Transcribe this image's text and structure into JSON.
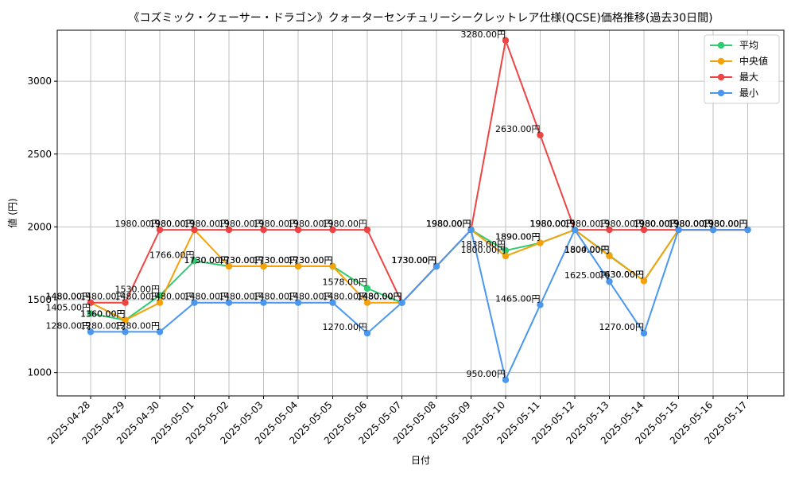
{
  "chart_data": {
    "type": "line",
    "title": "《コズミック・クェーサー・ドラゴン》クォーターセンチュリーシークレットレア仕様(QCSE)価格推移(過去30日間)",
    "xlabel": "日付",
    "ylabel": "値 (円)",
    "ylim": [
      840,
      3350
    ],
    "yticks": [
      1000,
      1500,
      2000,
      2500,
      3000
    ],
    "grid": true,
    "legend_position": "top-right",
    "label_suffix": "円",
    "x": [
      "2025-04-28",
      "2025-04-29",
      "2025-04-30",
      "2025-05-01",
      "2025-05-02",
      "2025-05-03",
      "2025-05-04",
      "2025-05-05",
      "2025-05-06",
      "2025-05-07",
      "2025-05-08",
      "2025-05-09",
      "2025-05-10",
      "2025-05-11",
      "2025-05-12",
      "2025-05-13",
      "2025-05-14",
      "2025-05-15",
      "2025-05-16",
      "2025-05-17"
    ],
    "series": [
      {
        "name": "平均",
        "color": "#2ecc71",
        "values": [
          1405,
          1360,
          1530,
          1766,
          1730,
          1730,
          1730,
          1730,
          1578,
          1480,
          1730,
          1980,
          1838,
          1890,
          1980,
          1804,
          1630,
          1980,
          1980,
          1980
        ]
      },
      {
        "name": "中央値",
        "color": "#f5a20a",
        "values": [
          1480,
          1360,
          1480,
          1980,
          1730,
          1730,
          1730,
          1730,
          1480,
          1480,
          1730,
          1980,
          1800,
          1890,
          1980,
          1800,
          1630,
          1980,
          1980,
          1980
        ]
      },
      {
        "name": "最大",
        "color": "#ef4444",
        "values": [
          1480,
          1480,
          1980,
          1980,
          1980,
          1980,
          1980,
          1980,
          1980,
          1480,
          1730,
          1980,
          3280,
          2630,
          1980,
          1980,
          1980,
          1980,
          1980,
          1980
        ]
      },
      {
        "name": "最小",
        "color": "#4a97f0",
        "values": [
          1280,
          1280,
          1280,
          1480,
          1480,
          1480,
          1480,
          1480,
          1270,
          1480,
          1730,
          1980,
          950,
          1465,
          1980,
          1625,
          1270,
          1980,
          1980,
          1980
        ]
      }
    ]
  }
}
